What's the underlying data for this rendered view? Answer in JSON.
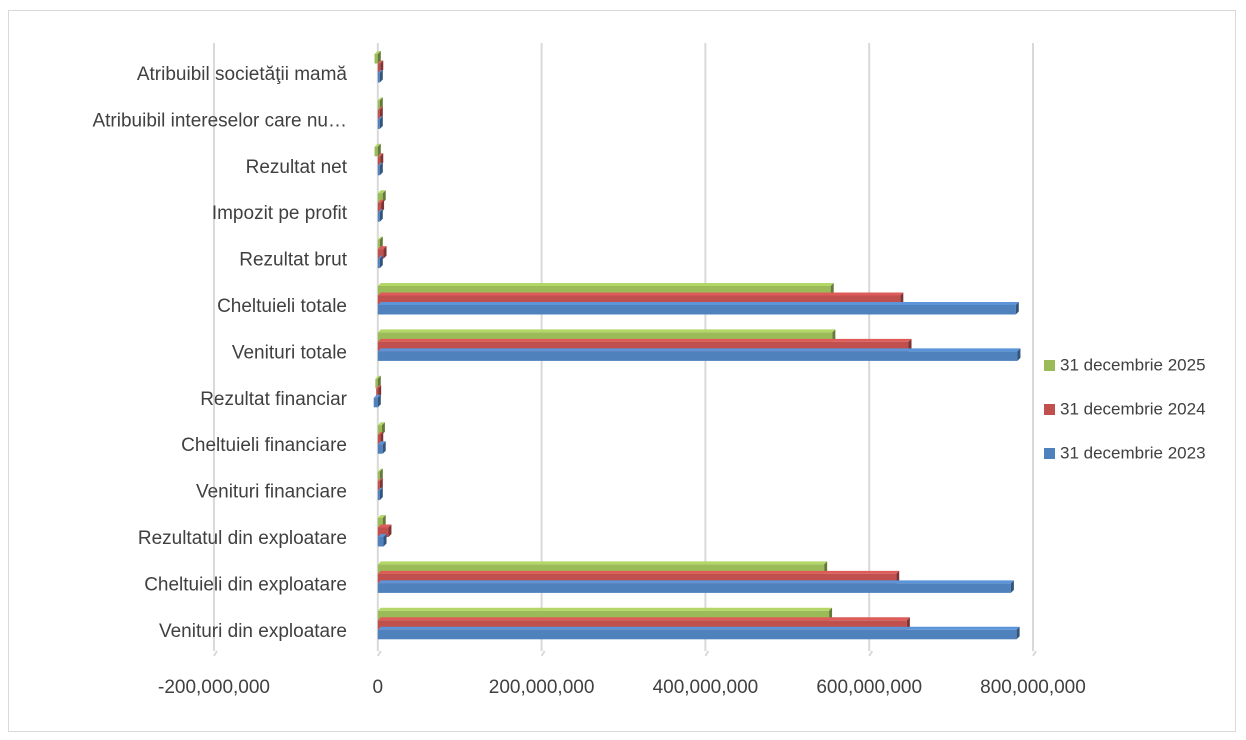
{
  "chart_data": {
    "type": "bar",
    "orientation": "horizontal",
    "style": "3d-clustered-bar",
    "categories": [
      "Venituri din exploatare",
      "Cheltuieli din exploatare",
      "Rezultatul din exploatare",
      "Venituri financiare",
      "Cheltuieli financiare",
      "Rezultat financiar",
      "Venituri totale",
      "Cheltuieli totale",
      "Rezultat brut",
      "Impozit pe profit",
      "Rezultat net",
      "Atribuibil intereselor care nu…",
      "Atribuibil societăţii mamă"
    ],
    "series": [
      {
        "name": "31 decembrie 2023",
        "color": "#4f81bd",
        "values": [
          780000000,
          773000000,
          7000000,
          1000000,
          6000000,
          -5000000,
          781000000,
          779000000,
          2000000,
          1000000,
          1000000,
          0,
          1000000
        ]
      },
      {
        "name": "31 decembrie 2024",
        "color": "#c0504d",
        "values": [
          646000000,
          633000000,
          13000000,
          1000000,
          3000000,
          -2000000,
          648000000,
          638000000,
          7000000,
          4000000,
          3000000,
          0,
          3000000
        ]
      },
      {
        "name": "31 decembrie 2025",
        "color": "#9bbb59",
        "values": [
          551000000,
          545000000,
          6000000,
          2000000,
          5000000,
          -3000000,
          555000000,
          553000000,
          2000000,
          6000000,
          -4000000,
          0,
          -4000000
        ]
      }
    ],
    "xlim": [
      -200000000,
      800000000
    ],
    "x_ticks": [
      -200000000,
      0,
      200000000,
      400000000,
      600000000,
      800000000
    ],
    "x_tick_labels": [
      "-200,000,000",
      "0",
      "200,000,000",
      "400,000,000",
      "600,000,000",
      "800,000,000"
    ],
    "gridlines": "vertical",
    "legend_position": "right",
    "legend_order": [
      "31 decembrie 2025",
      "31 decembrie 2024",
      "31 decembrie 2023"
    ],
    "title": "",
    "xlabel": "",
    "ylabel": ""
  }
}
